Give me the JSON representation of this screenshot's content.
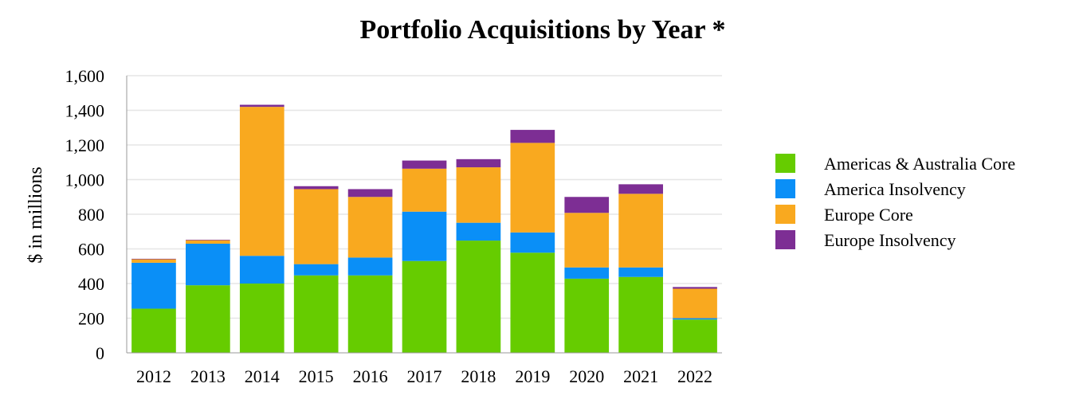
{
  "chart_data": {
    "type": "bar",
    "stacked": true,
    "title": "Portfolio Acquisitions by Year *",
    "xlabel": "",
    "ylabel": "$ in millions",
    "ylim": [
      0,
      1600
    ],
    "yticks": [
      "0",
      "200",
      "400",
      "600",
      "800",
      "1,000",
      "1,200",
      "1,400",
      "1,600"
    ],
    "grid": true,
    "legend_position": "right",
    "categories": [
      "2012",
      "2013",
      "2014",
      "2015",
      "2016",
      "2017",
      "2018",
      "2019",
      "2020",
      "2021",
      "2022"
    ],
    "series": [
      {
        "name": "Americas & Australia Core",
        "color": "#66cc00",
        "values": [
          255,
          390,
          400,
          447,
          447,
          530,
          648,
          578,
          428,
          438,
          192
        ]
      },
      {
        "name": "America Insolvency",
        "color": "#0a8ff7",
        "values": [
          265,
          240,
          160,
          65,
          103,
          285,
          103,
          117,
          65,
          55,
          8
        ]
      },
      {
        "name": "Europe Core",
        "color": "#f9a91f",
        "values": [
          20,
          20,
          860,
          433,
          350,
          248,
          320,
          517,
          315,
          425,
          170
        ]
      },
      {
        "name": "Europe Insolvency",
        "color": "#7d2e94",
        "values": [
          3,
          3,
          12,
          17,
          45,
          47,
          47,
          75,
          92,
          55,
          10
        ]
      }
    ]
  }
}
